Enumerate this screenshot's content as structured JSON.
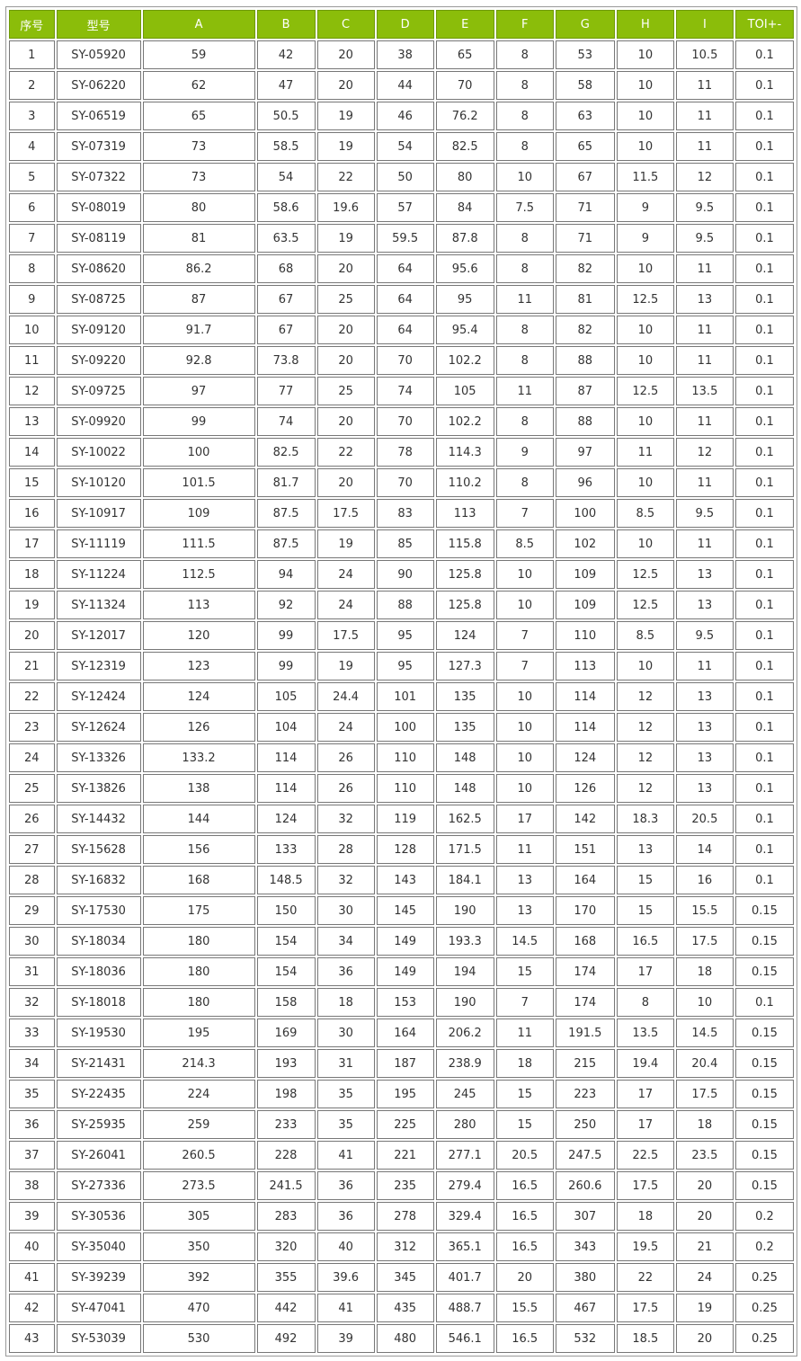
{
  "table": {
    "header_color": "#8bbd0a",
    "columns": [
      "序号",
      "型号",
      "A",
      "B",
      "C",
      "D",
      "E",
      "F",
      "G",
      "H",
      "I",
      "TOI+-"
    ],
    "rows": [
      [
        "1",
        "SY-05920",
        "59",
        "42",
        "20",
        "38",
        "65",
        "8",
        "53",
        "10",
        "10.5",
        "0.1"
      ],
      [
        "2",
        "SY-06220",
        "62",
        "47",
        "20",
        "44",
        "70",
        "8",
        "58",
        "10",
        "11",
        "0.1"
      ],
      [
        "3",
        "SY-06519",
        "65",
        "50.5",
        "19",
        "46",
        "76.2",
        "8",
        "63",
        "10",
        "11",
        "0.1"
      ],
      [
        "4",
        "SY-07319",
        "73",
        "58.5",
        "19",
        "54",
        "82.5",
        "8",
        "65",
        "10",
        "11",
        "0.1"
      ],
      [
        "5",
        "SY-07322",
        "73",
        "54",
        "22",
        "50",
        "80",
        "10",
        "67",
        "11.5",
        "12",
        "0.1"
      ],
      [
        "6",
        "SY-08019",
        "80",
        "58.6",
        "19.6",
        "57",
        "84",
        "7.5",
        "71",
        "9",
        "9.5",
        "0.1"
      ],
      [
        "7",
        "SY-08119",
        "81",
        "63.5",
        "19",
        "59.5",
        "87.8",
        "8",
        "71",
        "9",
        "9.5",
        "0.1"
      ],
      [
        "8",
        "SY-08620",
        "86.2",
        "68",
        "20",
        "64",
        "95.6",
        "8",
        "82",
        "10",
        "11",
        "0.1"
      ],
      [
        "9",
        "SY-08725",
        "87",
        "67",
        "25",
        "64",
        "95",
        "11",
        "81",
        "12.5",
        "13",
        "0.1"
      ],
      [
        "10",
        "SY-09120",
        "91.7",
        "67",
        "20",
        "64",
        "95.4",
        "8",
        "82",
        "10",
        "11",
        "0.1"
      ],
      [
        "11",
        "SY-09220",
        "92.8",
        "73.8",
        "20",
        "70",
        "102.2",
        "8",
        "88",
        "10",
        "11",
        "0.1"
      ],
      [
        "12",
        "SY-09725",
        "97",
        "77",
        "25",
        "74",
        "105",
        "11",
        "87",
        "12.5",
        "13.5",
        "0.1"
      ],
      [
        "13",
        "SY-09920",
        "99",
        "74",
        "20",
        "70",
        "102.2",
        "8",
        "88",
        "10",
        "11",
        "0.1"
      ],
      [
        "14",
        "SY-10022",
        "100",
        "82.5",
        "22",
        "78",
        "114.3",
        "9",
        "97",
        "11",
        "12",
        "0.1"
      ],
      [
        "15",
        "SY-10120",
        "101.5",
        "81.7",
        "20",
        "70",
        "110.2",
        "8",
        "96",
        "10",
        "11",
        "0.1"
      ],
      [
        "16",
        "SY-10917",
        "109",
        "87.5",
        "17.5",
        "83",
        "113",
        "7",
        "100",
        "8.5",
        "9.5",
        "0.1"
      ],
      [
        "17",
        "SY-11119",
        "111.5",
        "87.5",
        "19",
        "85",
        "115.8",
        "8.5",
        "102",
        "10",
        "11",
        "0.1"
      ],
      [
        "18",
        "SY-11224",
        "112.5",
        "94",
        "24",
        "90",
        "125.8",
        "10",
        "109",
        "12.5",
        "13",
        "0.1"
      ],
      [
        "19",
        "SY-11324",
        "113",
        "92",
        "24",
        "88",
        "125.8",
        "10",
        "109",
        "12.5",
        "13",
        "0.1"
      ],
      [
        "20",
        "SY-12017",
        "120",
        "99",
        "17.5",
        "95",
        "124",
        "7",
        "110",
        "8.5",
        "9.5",
        "0.1"
      ],
      [
        "21",
        "SY-12319",
        "123",
        "99",
        "19",
        "95",
        "127.3",
        "7",
        "113",
        "10",
        "11",
        "0.1"
      ],
      [
        "22",
        "SY-12424",
        "124",
        "105",
        "24.4",
        "101",
        "135",
        "10",
        "114",
        "12",
        "13",
        "0.1"
      ],
      [
        "23",
        "SY-12624",
        "126",
        "104",
        "24",
        "100",
        "135",
        "10",
        "114",
        "12",
        "13",
        "0.1"
      ],
      [
        "24",
        "SY-13326",
        "133.2",
        "114",
        "26",
        "110",
        "148",
        "10",
        "124",
        "12",
        "13",
        "0.1"
      ],
      [
        "25",
        "SY-13826",
        "138",
        "114",
        "26",
        "110",
        "148",
        "10",
        "126",
        "12",
        "13",
        "0.1"
      ],
      [
        "26",
        "SY-14432",
        "144",
        "124",
        "32",
        "119",
        "162.5",
        "17",
        "142",
        "18.3",
        "20.5",
        "0.1"
      ],
      [
        "27",
        "SY-15628",
        "156",
        "133",
        "28",
        "128",
        "171.5",
        "11",
        "151",
        "13",
        "14",
        "0.1"
      ],
      [
        "28",
        "SY-16832",
        "168",
        "148.5",
        "32",
        "143",
        "184.1",
        "13",
        "164",
        "15",
        "16",
        "0.1"
      ],
      [
        "29",
        "SY-17530",
        "175",
        "150",
        "30",
        "145",
        "190",
        "13",
        "170",
        "15",
        "15.5",
        "0.15"
      ],
      [
        "30",
        "SY-18034",
        "180",
        "154",
        "34",
        "149",
        "193.3",
        "14.5",
        "168",
        "16.5",
        "17.5",
        "0.15"
      ],
      [
        "31",
        "SY-18036",
        "180",
        "154",
        "36",
        "149",
        "194",
        "15",
        "174",
        "17",
        "18",
        "0.15"
      ],
      [
        "32",
        "SY-18018",
        "180",
        "158",
        "18",
        "153",
        "190",
        "7",
        "174",
        "8",
        "10",
        "0.1"
      ],
      [
        "33",
        "SY-19530",
        "195",
        "169",
        "30",
        "164",
        "206.2",
        "11",
        "191.5",
        "13.5",
        "14.5",
        "0.15"
      ],
      [
        "34",
        "SY-21431",
        "214.3",
        "193",
        "31",
        "187",
        "238.9",
        "18",
        "215",
        "19.4",
        "20.4",
        "0.15"
      ],
      [
        "35",
        "SY-22435",
        "224",
        "198",
        "35",
        "195",
        "245",
        "15",
        "223",
        "17",
        "17.5",
        "0.15"
      ],
      [
        "36",
        "SY-25935",
        "259",
        "233",
        "35",
        "225",
        "280",
        "15",
        "250",
        "17",
        "18",
        "0.15"
      ],
      [
        "37",
        "SY-26041",
        "260.5",
        "228",
        "41",
        "221",
        "277.1",
        "20.5",
        "247.5",
        "22.5",
        "23.5",
        "0.15"
      ],
      [
        "38",
        "SY-27336",
        "273.5",
        "241.5",
        "36",
        "235",
        "279.4",
        "16.5",
        "260.6",
        "17.5",
        "20",
        "0.15"
      ],
      [
        "39",
        "SY-30536",
        "305",
        "283",
        "36",
        "278",
        "329.4",
        "16.5",
        "307",
        "18",
        "20",
        "0.2"
      ],
      [
        "40",
        "SY-35040",
        "350",
        "320",
        "40",
        "312",
        "365.1",
        "16.5",
        "343",
        "19.5",
        "21",
        "0.2"
      ],
      [
        "41",
        "SY-39239",
        "392",
        "355",
        "39.6",
        "345",
        "401.7",
        "20",
        "380",
        "22",
        "24",
        "0.25"
      ],
      [
        "42",
        "SY-47041",
        "470",
        "442",
        "41",
        "435",
        "488.7",
        "15.5",
        "467",
        "17.5",
        "19",
        "0.25"
      ],
      [
        "43",
        "SY-53039",
        "530",
        "492",
        "39",
        "480",
        "546.1",
        "16.5",
        "532",
        "18.5",
        "20",
        "0.25"
      ]
    ]
  }
}
